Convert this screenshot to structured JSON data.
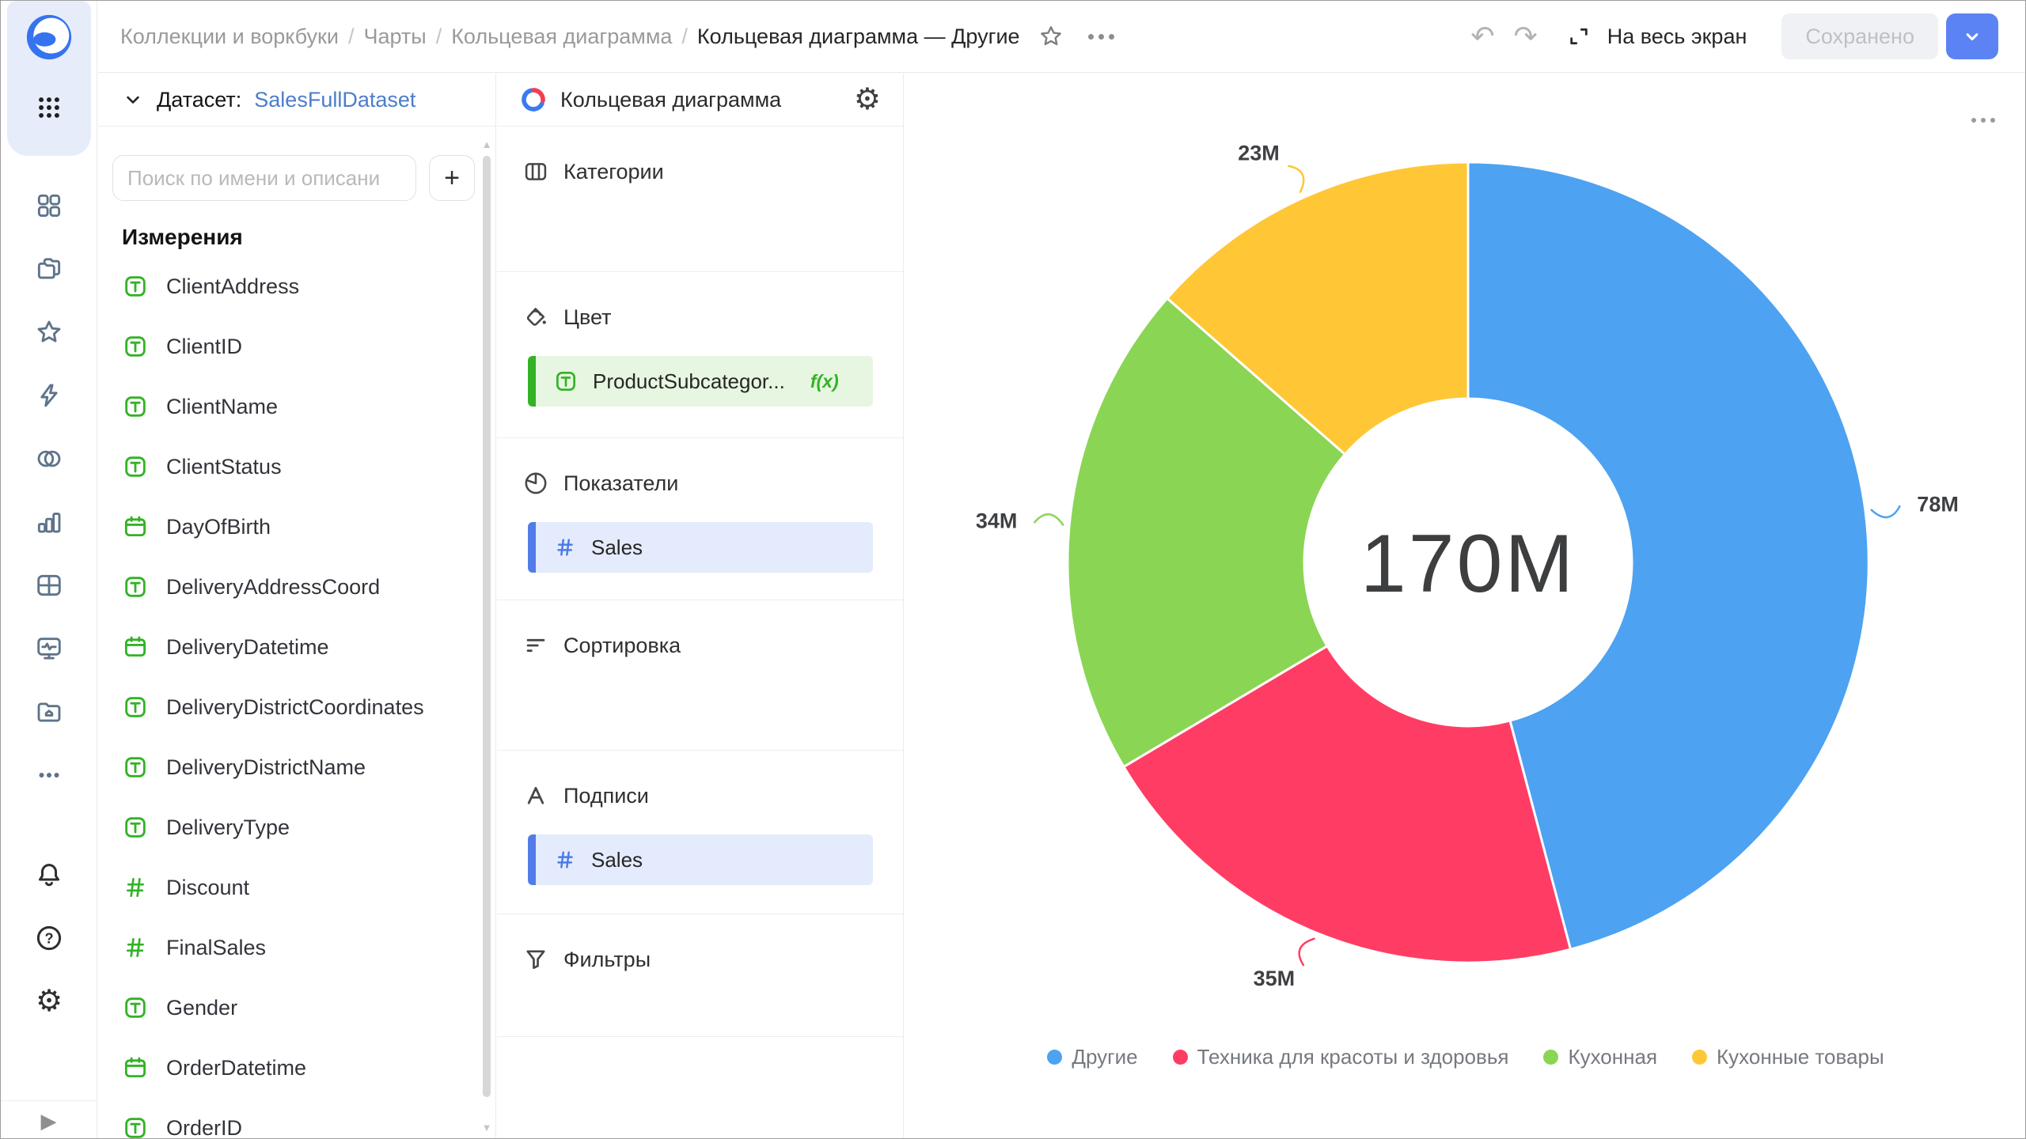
{
  "header": {
    "breadcrumbs": [
      "Коллекции и воркбуки",
      "Чарты",
      "Кольцевая диаграмма"
    ],
    "separator": "/",
    "current": "Кольцевая диаграмма — Другие",
    "fullscreen_label": "На весь экран",
    "save_status": "Сохранено"
  },
  "icons": {
    "undo": "↶",
    "redo": "↷",
    "play": "▶",
    "gear": "⚙",
    "plus": "+",
    "scroll_up": "▲",
    "scroll_down": "▼"
  },
  "sidebar": {
    "icon_names": [
      "datalens-logo",
      "apps-grid",
      "collections",
      "workbooks",
      "favorites",
      "alerts",
      "connections",
      "charts",
      "dashboards",
      "monitoring",
      "storage",
      "more",
      "notifications",
      "help",
      "settings",
      "expand"
    ]
  },
  "dataset_panel": {
    "label": "Датасет:",
    "dataset_name": "SalesFullDataset",
    "search_placeholder": "Поиск по имени и описани",
    "section_title": "Измерения",
    "fields": [
      {
        "name": "ClientAddress",
        "type": "text"
      },
      {
        "name": "ClientID",
        "type": "text"
      },
      {
        "name": "ClientName",
        "type": "text"
      },
      {
        "name": "ClientStatus",
        "type": "text"
      },
      {
        "name": "DayOfBirth",
        "type": "date"
      },
      {
        "name": "DeliveryAddressCoord",
        "type": "text"
      },
      {
        "name": "DeliveryDatetime",
        "type": "date"
      },
      {
        "name": "DeliveryDistrictCoordinates",
        "type": "text"
      },
      {
        "name": "DeliveryDistrictName",
        "type": "text"
      },
      {
        "name": "DeliveryType",
        "type": "text"
      },
      {
        "name": "Discount",
        "type": "number"
      },
      {
        "name": "FinalSales",
        "type": "number"
      },
      {
        "name": "Gender",
        "type": "text"
      },
      {
        "name": "OrderDatetime",
        "type": "date"
      },
      {
        "name": "OrderID",
        "type": "text"
      }
    ]
  },
  "config_panel": {
    "chart_type": "Кольцевая диаграмма",
    "sections": {
      "categories": {
        "label": "Категории"
      },
      "color": {
        "label": "Цвет",
        "field": {
          "name": "ProductSubcategor...",
          "type": "text",
          "formula": "f(x)"
        }
      },
      "measures": {
        "label": "Показатели",
        "field": {
          "name": "Sales",
          "type": "number"
        }
      },
      "sort": {
        "label": "Сортировка"
      },
      "labels": {
        "label": "Подписи",
        "field": {
          "name": "Sales",
          "type": "number"
        }
      },
      "filters": {
        "label": "Фильтры"
      }
    }
  },
  "chart_data": {
    "type": "pie",
    "subtype": "donut",
    "categories": [
      "Другие",
      "Техника для красоты и здоровья",
      "Кухонная",
      "Кухонные товары"
    ],
    "values": [
      78,
      35,
      34,
      23
    ],
    "value_labels": [
      "78M",
      "35M",
      "34M",
      "23M"
    ],
    "unit": "M",
    "total": 170,
    "center_label": "170M",
    "colors": [
      "#4DA2F1",
      "#FF3D64",
      "#8AD554",
      "#FFC636"
    ],
    "legend_position": "bottom",
    "donut_hole_ratio": 0.41,
    "start_angle_deg": 0,
    "direction": "clockwise"
  }
}
